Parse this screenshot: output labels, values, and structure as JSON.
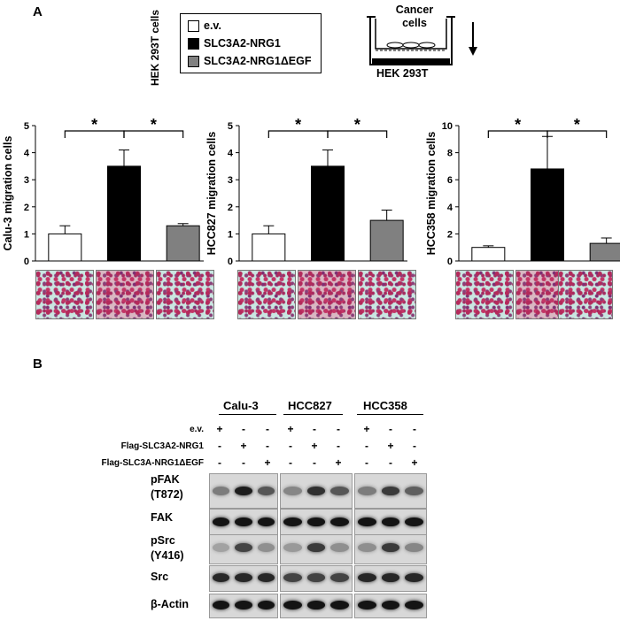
{
  "panel_a": {
    "letter": "A",
    "cell_line_vertical": "HEK 293T cells",
    "legend": [
      {
        "label": "e.v.",
        "color": "#ffffff"
      },
      {
        "label": "SLC3A2-NRG1",
        "color": "#000000"
      },
      {
        "label": "SLC3A2-NRG1ΔEGF",
        "color": "#808080"
      }
    ],
    "schematic": {
      "top_label": "Cancer cells",
      "bottom_label": "HEK 293T"
    },
    "significance": "*"
  },
  "chart_data": [
    {
      "type": "bar",
      "categories": [
        "e.v.",
        "SLC3A2-NRG1",
        "SLC3A2-NRG1ΔEGF"
      ],
      "values": [
        1.0,
        3.5,
        1.3
      ],
      "errors": [
        0.3,
        0.6,
        0.08
      ],
      "ylabel": "Calu-3 migration cells",
      "ylim": [
        0,
        5
      ],
      "yticks": [
        "0",
        "1",
        "2",
        "3",
        "4",
        "5"
      ],
      "colors": [
        "#ffffff",
        "#000000",
        "#808080"
      ]
    },
    {
      "type": "bar",
      "categories": [
        "e.v.",
        "SLC3A2-NRG1",
        "SLC3A2-NRG1ΔEGF"
      ],
      "values": [
        1.0,
        3.5,
        1.5
      ],
      "errors": [
        0.3,
        0.6,
        0.38
      ],
      "ylabel": "HCC827 migration cells",
      "ylim": [
        0,
        5
      ],
      "yticks": [
        "0",
        "1",
        "2",
        "3",
        "4",
        "5"
      ],
      "colors": [
        "#ffffff",
        "#000000",
        "#808080"
      ]
    },
    {
      "type": "bar",
      "categories": [
        "e.v.",
        "SLC3A2-NRG1",
        "SLC3A2-NRG1ΔEGF"
      ],
      "values": [
        1.0,
        6.8,
        1.3
      ],
      "errors": [
        0.12,
        2.4,
        0.4
      ],
      "ylabel": "HCC358 migration cells",
      "ylim": [
        0,
        10
      ],
      "yticks": [
        "0",
        "2",
        "4",
        "6",
        "8",
        "10"
      ],
      "colors": [
        "#ffffff",
        "#000000",
        "#808080"
      ]
    }
  ],
  "panel_b": {
    "letter": "B",
    "cell_lines": [
      "Calu-3",
      "HCC827",
      "HCC358"
    ],
    "conditions": [
      {
        "label": "e.v.",
        "signs": [
          "+",
          "-",
          "-"
        ]
      },
      {
        "label": "Flag-SLC3A2-NRG1",
        "signs": [
          "-",
          "+",
          "-"
        ]
      },
      {
        "label": "Flag-SLC3A-NRG1ΔEGF",
        "signs": [
          "-",
          "-",
          "+"
        ]
      }
    ],
    "rows": [
      {
        "line1": "pFAK",
        "line2": "(T872)"
      },
      {
        "line1": "FAK",
        "line2": ""
      },
      {
        "line1": "pSrc",
        "line2": "(Y416)"
      },
      {
        "line1": "Src",
        "line2": ""
      },
      {
        "line1": "β-Actin",
        "line2": ""
      }
    ]
  }
}
